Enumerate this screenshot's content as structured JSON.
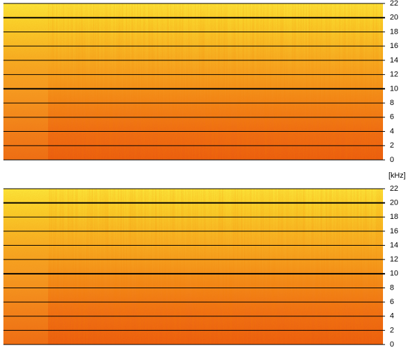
{
  "chart_data": [
    {
      "type": "spectrogram",
      "ylim": [
        0,
        22
      ],
      "yticks": [
        0,
        2,
        4,
        6,
        8,
        10,
        12,
        14,
        16,
        18,
        20,
        22
      ],
      "grid": true,
      "bold_gridlines": [
        10,
        20
      ]
    },
    {
      "type": "spectrogram",
      "y_label": "[kHz]",
      "ylim": [
        0,
        22
      ],
      "yticks": [
        0,
        2,
        4,
        6,
        8,
        10,
        12,
        14,
        16,
        18,
        20,
        22
      ],
      "grid": true,
      "bold_gridlines": [
        10,
        20
      ]
    }
  ]
}
